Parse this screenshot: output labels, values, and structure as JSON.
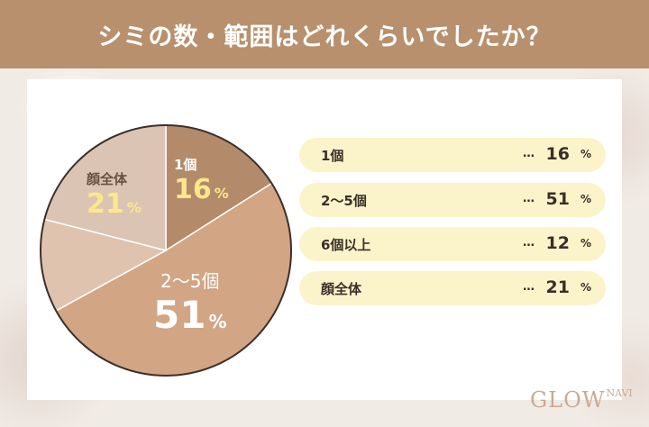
{
  "title": "シミの数・範囲はどれくらいでしたか？",
  "chart_data": {
    "type": "pie",
    "title": "シミの数・範囲はどれくらいでしたか？",
    "categories": [
      "1個",
      "2〜5個",
      "6個以上",
      "顔全体"
    ],
    "values": [
      16,
      51,
      12,
      21
    ],
    "unit": "%",
    "colors": [
      "#b38a6a",
      "#d2a585",
      "#e0c3ae",
      "#dcc4b4"
    ]
  },
  "pie_labels": {
    "one": {
      "name": "1個",
      "value": "16",
      "unit": "%"
    },
    "two_five": {
      "name": "2〜5個",
      "value": "51",
      "unit": "%"
    },
    "face": {
      "name": "顔全体",
      "value": "21",
      "unit": "%"
    }
  },
  "legend": [
    {
      "label": "1個",
      "dots": "…",
      "value": "16",
      "unit": "%"
    },
    {
      "label": "2〜5個",
      "dots": "…",
      "value": "51",
      "unit": "%"
    },
    {
      "label": "6個以上",
      "dots": "…",
      "value": "12",
      "unit": "%"
    },
    {
      "label": "顔全体",
      "dots": "…",
      "value": "21",
      "unit": "%"
    }
  ],
  "logo": {
    "main": "GLOW",
    "sub": "NAVI"
  }
}
